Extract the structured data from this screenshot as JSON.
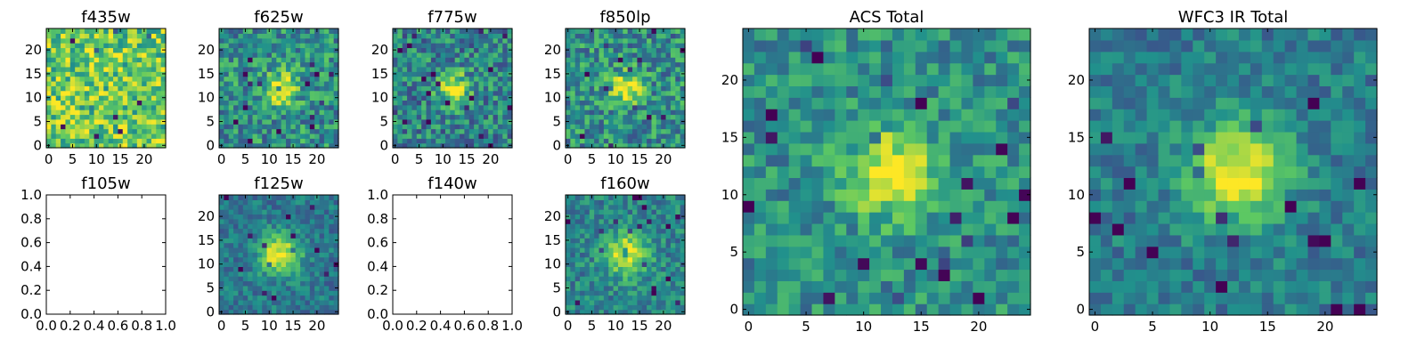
{
  "chart_data": [
    {
      "type": "heatmap",
      "title": "f435w",
      "size": 25,
      "pattern": "noise",
      "noise": 0.55,
      "base": 0.75,
      "peak": 0.0,
      "sigma": 3,
      "seed": 11,
      "xticks": [
        0,
        5,
        10,
        15,
        20
      ],
      "yticks": [
        0,
        5,
        10,
        15,
        20
      ],
      "xlim": [
        0,
        25
      ],
      "ylim": [
        0,
        25
      ]
    },
    {
      "type": "heatmap",
      "title": "f625w",
      "size": 25,
      "pattern": "source",
      "noise": 0.5,
      "base": 0.5,
      "peak": 0.45,
      "sigma": 2.6,
      "seed": 23,
      "xticks": [
        0,
        5,
        10,
        15,
        20
      ],
      "yticks": [
        0,
        5,
        10,
        15,
        20
      ],
      "xlim": [
        0,
        25
      ],
      "ylim": [
        0,
        25
      ]
    },
    {
      "type": "heatmap",
      "title": "f775w",
      "size": 25,
      "pattern": "source",
      "noise": 0.5,
      "base": 0.45,
      "peak": 0.55,
      "sigma": 2.3,
      "seed": 37,
      "xticks": [
        0,
        5,
        10,
        15,
        20
      ],
      "yticks": [
        0,
        5,
        10,
        15,
        20
      ],
      "xlim": [
        0,
        25
      ],
      "ylim": [
        0,
        25
      ]
    },
    {
      "type": "heatmap",
      "title": "f850lp",
      "size": 25,
      "pattern": "source",
      "noise": 0.5,
      "base": 0.5,
      "peak": 0.5,
      "sigma": 2.3,
      "seed": 41,
      "xticks": [
        0,
        5,
        10,
        15,
        20
      ],
      "yticks": [
        0,
        5,
        10,
        15,
        20
      ],
      "xlim": [
        0,
        25
      ],
      "ylim": [
        0,
        25
      ]
    },
    {
      "type": "empty",
      "title": "f105w",
      "xticks": [
        "0.0",
        "0.2",
        "0.4",
        "0.6",
        "0.8",
        "1.0"
      ],
      "yticks": [
        "0.0",
        "0.2",
        "0.4",
        "0.6",
        "0.8",
        "1.0"
      ],
      "xlim": [
        0,
        1
      ],
      "ylim": [
        0,
        1
      ]
    },
    {
      "type": "heatmap",
      "title": "f125w",
      "size": 25,
      "pattern": "source",
      "noise": 0.3,
      "base": 0.4,
      "peak": 0.6,
      "sigma": 3.0,
      "seed": 53,
      "xticks": [
        0,
        5,
        10,
        15,
        20
      ],
      "yticks": [
        0,
        5,
        10,
        15,
        20
      ],
      "xlim": [
        0,
        25
      ],
      "ylim": [
        0,
        25
      ]
    },
    {
      "type": "empty",
      "title": "f140w",
      "xticks": [
        "0.0",
        "0.2",
        "0.4",
        "0.6",
        "0.8",
        "1.0"
      ],
      "yticks": [
        "0.0",
        "0.2",
        "0.4",
        "0.6",
        "0.8",
        "1.0"
      ],
      "xlim": [
        0,
        1
      ],
      "ylim": [
        0,
        1
      ]
    },
    {
      "type": "heatmap",
      "title": "f160w",
      "size": 25,
      "pattern": "source",
      "noise": 0.35,
      "base": 0.45,
      "peak": 0.55,
      "sigma": 3.0,
      "seed": 61,
      "xticks": [
        0,
        5,
        10,
        15,
        20
      ],
      "yticks": [
        0,
        5,
        10,
        15,
        20
      ],
      "xlim": [
        0,
        25
      ],
      "ylim": [
        0,
        25
      ]
    },
    {
      "type": "heatmap",
      "title": "ACS Total",
      "size": 25,
      "pattern": "source",
      "noise": 0.38,
      "base": 0.5,
      "peak": 0.5,
      "sigma": 2.6,
      "seed": 71,
      "xticks": [
        0,
        5,
        10,
        15,
        20
      ],
      "yticks": [
        0,
        5,
        10,
        15,
        20
      ],
      "xlim": [
        0,
        25
      ],
      "ylim": [
        0,
        25
      ]
    },
    {
      "type": "heatmap",
      "title": "WFC3 IR Total",
      "size": 25,
      "pattern": "source",
      "noise": 0.3,
      "base": 0.42,
      "peak": 0.6,
      "sigma": 3.0,
      "seed": 83,
      "xticks": [
        0,
        5,
        10,
        15,
        20
      ],
      "yticks": [
        0,
        5,
        10,
        15,
        20
      ],
      "xlim": [
        0,
        25
      ],
      "ylim": [
        0,
        25
      ]
    }
  ],
  "colormap": [
    "#440154",
    "#3b528b",
    "#21918c",
    "#5ec962",
    "#fde725"
  ]
}
